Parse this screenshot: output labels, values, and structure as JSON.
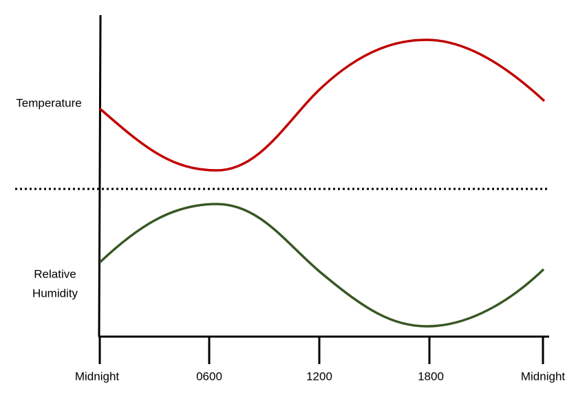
{
  "series_labels": {
    "temperature": "Temperature",
    "humidity": [
      "Relative",
      "Humidity"
    ]
  },
  "x_labels": [
    "Midnight",
    "0600",
    "1200",
    "1800",
    "Midnight"
  ]
}
